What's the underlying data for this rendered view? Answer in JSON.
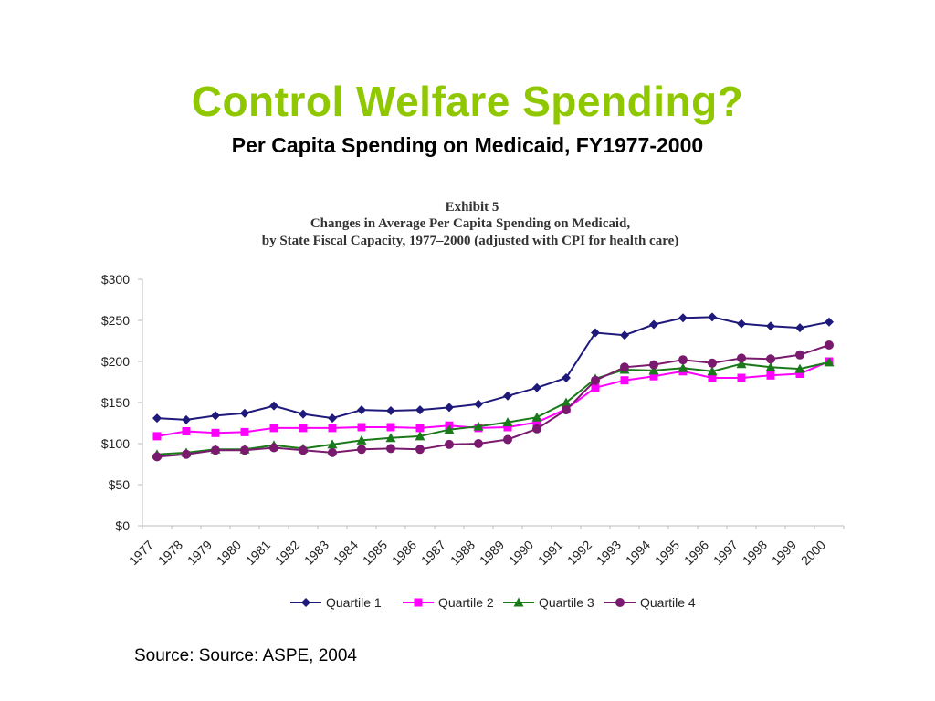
{
  "slide": {
    "title": "Control Welfare Spending?",
    "subtitle": "Per Capita Spending on Medicaid, FY1977-2000",
    "source": "Source: Source: ASPE, 2004"
  },
  "chart_data": {
    "type": "line",
    "exhibit": "Exhibit 5",
    "title": "Changes in Average Per Capita Spending on Medicaid,",
    "title_line2": "by State Fiscal Capacity, 1977–2000 (adjusted with CPI for health care)",
    "xlabel": "",
    "ylabel": "",
    "ylim": [
      0,
      300
    ],
    "yticks": [
      "$0",
      "$50",
      "$100",
      "$150",
      "$200",
      "$250",
      "$300"
    ],
    "x": [
      "1977",
      "1978",
      "1979",
      "1980",
      "1981",
      "1982",
      "1983",
      "1984",
      "1985",
      "1986",
      "1987",
      "1988",
      "1989",
      "1990",
      "1991",
      "1992",
      "1993",
      "1994",
      "1995",
      "1996",
      "1997",
      "1998",
      "1999",
      "2000"
    ],
    "grid": false,
    "legend_position": "bottom",
    "series": [
      {
        "name": "Quartile 1",
        "color": "#1f1a7a",
        "marker": "diamond",
        "values": [
          131,
          129,
          134,
          137,
          146,
          136,
          131,
          141,
          140,
          141,
          144,
          148,
          158,
          168,
          180,
          235,
          232,
          245,
          253,
          254,
          246,
          243,
          241,
          248
        ]
      },
      {
        "name": "Quartile 2",
        "color": "#ff00ff",
        "marker": "square",
        "values": [
          109,
          115,
          113,
          114,
          119,
          119,
          119,
          120,
          120,
          119,
          122,
          119,
          120,
          126,
          142,
          168,
          177,
          182,
          188,
          180,
          180,
          183,
          185,
          200
        ]
      },
      {
        "name": "Quartile 3",
        "color": "#1a7a1a",
        "marker": "triangle",
        "values": [
          87,
          89,
          93,
          93,
          98,
          94,
          99,
          104,
          107,
          109,
          117,
          121,
          126,
          132,
          150,
          179,
          190,
          189,
          192,
          188,
          197,
          193,
          191,
          199
        ]
      },
      {
        "name": "Quartile 4",
        "color": "#7a1a6e",
        "marker": "circle",
        "values": [
          84,
          87,
          92,
          92,
          95,
          92,
          89,
          93,
          94,
          93,
          99,
          100,
          105,
          118,
          141,
          177,
          193,
          196,
          202,
          198,
          204,
          203,
          208,
          220
        ]
      }
    ]
  }
}
